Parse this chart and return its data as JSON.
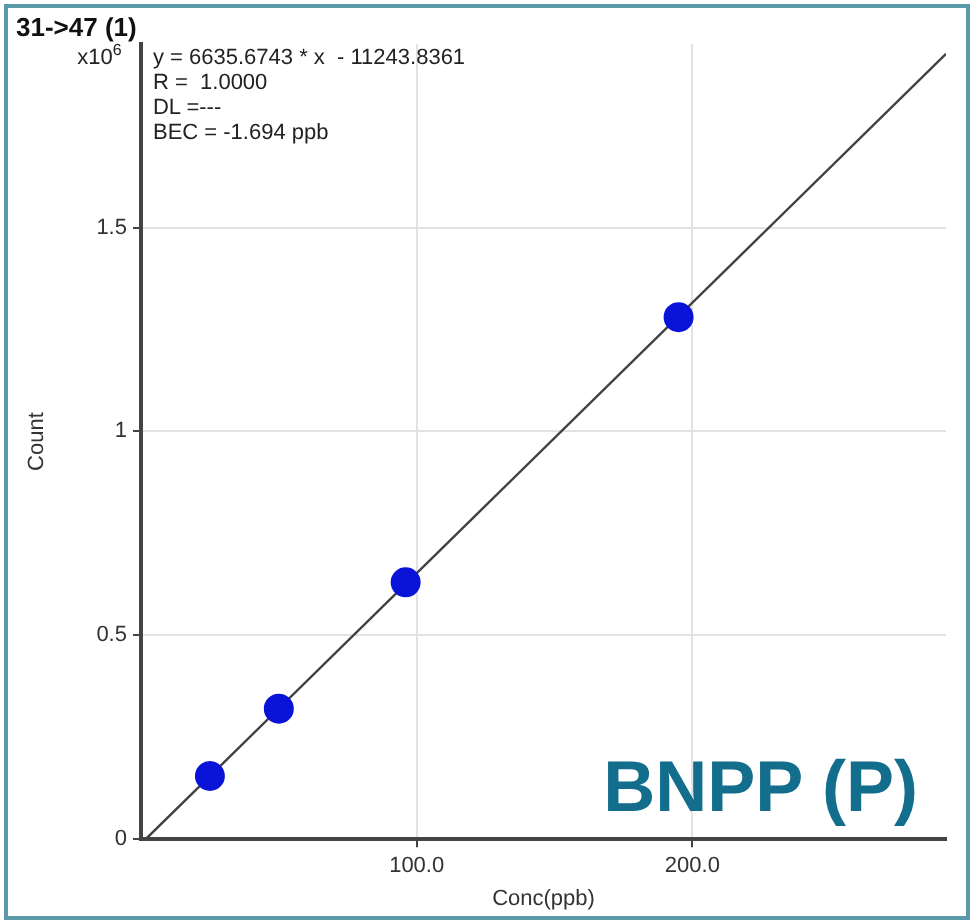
{
  "chart_data": {
    "type": "scatter",
    "title": "31->47 (1)",
    "xlabel": "Conc(ppb)",
    "ylabel": "Count",
    "annotations": [
      "x10$^{6}$",
      "y = 6635.6743 * x  - 11243.8361",
      "R =  1.0000",
      "DL =---",
      "BEC = -1.694 ppb",
      "BNPP (P)"
    ],
    "series": [
      {
        "color": "#0a14d8",
        "marker": "circle",
        "x": [
          25,
          50,
          96,
          195
        ],
        "values": [
          0.155,
          0.32,
          0.63,
          1.28
        ]
      },
      {
        "type": "line",
        "marker": "none",
        "color": "#404040",
        "x": [
          1.7,
          292
        ],
        "values": [
          0,
          1.926
        ]
      }
    ],
    "xlim": [
      0,
      292
    ],
    "xticks": [
      {
        "value": 100,
        "label": "100.0"
      },
      {
        "value": 200,
        "label": "200.0"
      }
    ],
    "ylim": [
      0,
      1.95
    ],
    "yticks": [
      0,
      0.5,
      1,
      1.5
    ],
    "grid": true
  }
}
